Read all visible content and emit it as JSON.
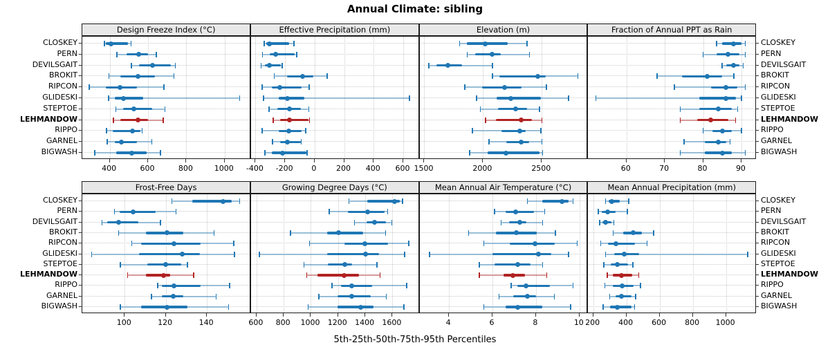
{
  "title": "Annual Climate: sibling",
  "footer": "5th-25th-50th-75th-95th Percentiles",
  "percentile_labels": [
    "5th",
    "25th",
    "50th",
    "75th",
    "95th"
  ],
  "sites": [
    "CLOSKEY",
    "PERN",
    "DEVILSGAIT",
    "BROKIT",
    "RIPCON",
    "GLIDESKI",
    "STEPTOE",
    "LEHMANDOW",
    "RIPPO",
    "GARNEL",
    "BIGWASH"
  ],
  "highlight_site": "LEHMANDOW",
  "colors": {
    "series": "#1f77b4",
    "series_light": "rgba(31,119,180,0.42)",
    "highlight": "#b22222",
    "highlight_light": "rgba(178,34,34,0.42)",
    "grid": "#c9c9c9",
    "strip_bg": "#e8e8e8",
    "border": "#1b1b1b"
  },
  "chart_data": {
    "type": "percentile-dotplot (dot = median, thick bar = 25th-75th, thin whisker = 5th-95th)",
    "grid": "dotted",
    "panels": [
      {
        "title": "Design Freeze Index (°C)",
        "row": 0,
        "col": 0,
        "xlim": [
          258,
          1138
        ],
        "ticks": [
          400,
          600,
          800,
          1000
        ],
        "values": [
          [
            372,
            380,
            408,
            495,
            511
          ],
          [
            438,
            487,
            553,
            599,
            643
          ],
          [
            514,
            553,
            625,
            720,
            743
          ],
          [
            396,
            457,
            547,
            637,
            736
          ],
          [
            294,
            378,
            454,
            541,
            683
          ],
          [
            394,
            426,
            472,
            575,
            1079
          ],
          [
            432,
            469,
            525,
            622,
            688
          ],
          [
            420,
            457,
            549,
            601,
            679
          ],
          [
            383,
            416,
            520,
            560,
            569
          ],
          [
            386,
            428,
            460,
            542,
            620
          ],
          [
            323,
            434,
            516,
            593,
            665
          ]
        ]
      },
      {
        "title": "Effective Precipitation (mm)",
        "row": 0,
        "col": 1,
        "xlim": [
          -430,
          711
        ],
        "ticks": [
          -400,
          -200,
          0,
          200,
          400,
          600
        ],
        "values": [
          [
            -341,
            -328,
            -305,
            -172,
            -141
          ],
          [
            -352,
            -305,
            -262,
            -133,
            -122
          ],
          [
            -363,
            -336,
            -305,
            -227,
            -219
          ],
          [
            -273,
            -188,
            -83,
            -8,
            86
          ],
          [
            -356,
            -289,
            -234,
            -86,
            -36
          ],
          [
            -347,
            -242,
            -184,
            -70,
            641
          ],
          [
            -309,
            -250,
            -169,
            -94,
            -39
          ],
          [
            -281,
            -234,
            -169,
            -42,
            -34
          ],
          [
            -356,
            -242,
            -175,
            -86,
            -59
          ],
          [
            -284,
            -234,
            -184,
            -94,
            -91
          ],
          [
            -336,
            -289,
            -216,
            -55,
            -50
          ]
        ]
      },
      {
        "title": "Elevation (m)",
        "row": 0,
        "col": 2,
        "xlim": [
          1460,
          2895
        ],
        "ticks": [
          1500,
          2000,
          2500
        ],
        "values": [
          [
            1800,
            1860,
            2020,
            2210,
            2375
          ],
          [
            1866,
            1931,
            2075,
            2148,
            2394
          ],
          [
            1537,
            1606,
            1699,
            1823,
            2079
          ],
          [
            2079,
            2138,
            2463,
            2531,
            2807
          ],
          [
            1843,
            1990,
            2181,
            2325,
            2541
          ],
          [
            1945,
            2118,
            2236,
            2492,
            2728
          ],
          [
            1976,
            2128,
            2276,
            2374,
            2482
          ],
          [
            2020,
            2108,
            2325,
            2413,
            2502
          ],
          [
            1911,
            2157,
            2315,
            2364,
            2492
          ],
          [
            2049,
            2197,
            2325,
            2394,
            2502
          ],
          [
            1886,
            2039,
            2197,
            2482,
            2508
          ]
        ]
      },
      {
        "title": "Fraction of Annual PPT as Rain",
        "row": 0,
        "col": 3,
        "xlim": [
          50,
          94
        ],
        "ticks": [
          60,
          70,
          80,
          90
        ],
        "values": [
          [
            83.5,
            85,
            88,
            90,
            91
          ],
          [
            80,
            83.5,
            86.5,
            89.5,
            91
          ],
          [
            85,
            86,
            88,
            89.5,
            90.5
          ],
          [
            68,
            74.5,
            81,
            85,
            88
          ],
          [
            72.5,
            82,
            86,
            89,
            91
          ],
          [
            52,
            79,
            86,
            88.5,
            90
          ],
          [
            74,
            79,
            84,
            87.5,
            89
          ],
          [
            74,
            78.5,
            82,
            86.5,
            88.5
          ],
          [
            80,
            82.5,
            85,
            87.5,
            90
          ],
          [
            75,
            80.5,
            84,
            86,
            87
          ],
          [
            74,
            80.5,
            85,
            87.5,
            91
          ]
        ]
      },
      {
        "title": "Frost-Free Days",
        "row": 1,
        "col": 0,
        "xlim": [
          79.5,
          161.5
        ],
        "ticks": [
          100,
          120,
          140
        ],
        "values": [
          [
            123,
            133,
            148,
            152,
            156
          ],
          [
            95,
            97.5,
            104,
            115,
            125
          ],
          [
            89,
            91.5,
            97,
            106.5,
            117.5
          ],
          [
            97,
            110.5,
            120.5,
            128.5,
            143.5
          ],
          [
            103.5,
            108,
            124,
            137,
            153
          ],
          [
            84,
            107,
            128,
            136.5,
            153.5
          ],
          [
            98,
            111,
            120,
            127.5,
            130.5
          ],
          [
            101.5,
            110.5,
            119,
            122,
            133.5
          ],
          [
            116,
            118,
            124,
            137,
            151
          ],
          [
            113,
            118,
            123.5,
            128.5,
            144.5
          ],
          [
            98,
            108,
            120.5,
            130.5,
            150.5
          ]
        ]
      },
      {
        "title": "Growing Degree Days (°C)",
        "row": 1,
        "col": 1,
        "xlim": [
          560,
          1800
        ],
        "ticks": [
          600,
          800,
          1000,
          1200,
          1400,
          1600
        ],
        "values": [
          [
            1280,
            1415,
            1615,
            1655,
            1675
          ],
          [
            1135,
            1270,
            1415,
            1540,
            1565
          ],
          [
            1320,
            1410,
            1470,
            1550,
            1595
          ],
          [
            850,
            1120,
            1205,
            1385,
            1550
          ],
          [
            990,
            1245,
            1395,
            1570,
            1720
          ],
          [
            620,
            1120,
            1400,
            1500,
            1690
          ],
          [
            950,
            1125,
            1250,
            1305,
            1485
          ],
          [
            970,
            1050,
            1245,
            1355,
            1510
          ],
          [
            1155,
            1220,
            1300,
            1450,
            1705
          ],
          [
            1060,
            1195,
            1300,
            1440,
            1555
          ],
          [
            980,
            1195,
            1365,
            1460,
            1685
          ]
        ]
      },
      {
        "title": "Mean Annual Air Temperature (°C)",
        "row": 1,
        "col": 2,
        "xlim": [
          2.65,
          10.4
        ],
        "ticks": [
          4,
          6,
          8,
          10
        ],
        "values": [
          [
            7.6,
            8.3,
            9.2,
            9.5,
            9.7
          ],
          [
            6.1,
            6.6,
            7.05,
            7.9,
            8.4
          ],
          [
            6.4,
            6.75,
            7.25,
            7.55,
            8.3
          ],
          [
            4.9,
            6.15,
            7.1,
            8.05,
            8.9
          ],
          [
            5.6,
            6.8,
            7.95,
            8.85,
            9.9
          ],
          [
            3.1,
            6.0,
            8.1,
            8.7,
            9.5
          ],
          [
            5.4,
            6.1,
            7.15,
            7.75,
            8.3
          ],
          [
            5.4,
            6.5,
            6.95,
            7.5,
            8.5
          ],
          [
            6.85,
            7.15,
            7.55,
            8.65,
            9.7
          ],
          [
            6.3,
            6.95,
            7.6,
            8.0,
            8.85
          ],
          [
            5.6,
            6.6,
            7.15,
            8.3,
            9.6
          ]
        ]
      },
      {
        "title": "Mean Annual Precipitation (mm)",
        "row": 1,
        "col": 3,
        "xlim": [
          170,
          1185
        ],
        "ticks": [
          200,
          400,
          600,
          800,
          1000
        ],
        "values": [
          [
            275,
            295,
            310,
            360,
            415
          ],
          [
            230,
            250,
            285,
            335,
            405
          ],
          [
            240,
            255,
            275,
            310,
            325
          ],
          [
            320,
            380,
            440,
            495,
            565
          ],
          [
            245,
            290,
            335,
            450,
            525
          ],
          [
            275,
            325,
            385,
            475,
            1130
          ],
          [
            265,
            305,
            345,
            410,
            440
          ],
          [
            285,
            320,
            370,
            435,
            475
          ],
          [
            270,
            320,
            375,
            445,
            485
          ],
          [
            300,
            335,
            370,
            430,
            455
          ],
          [
            260,
            300,
            345,
            430,
            450
          ]
        ]
      }
    ]
  }
}
